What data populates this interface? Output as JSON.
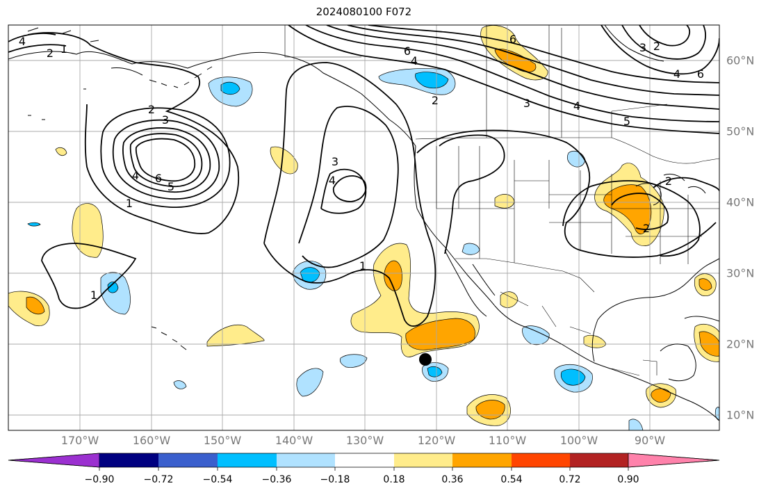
{
  "title": "2024080100 F072",
  "axes": {
    "longitude_labels": [
      "170°W",
      "160°W",
      "150°W",
      "140°W",
      "130°W",
      "120°W",
      "110°W",
      "100°W",
      "90°W"
    ],
    "latitude_labels": [
      "60°N",
      "50°N",
      "40°N",
      "30°N",
      "20°N",
      "10°N"
    ]
  },
  "colorbar": {
    "tick_labels": [
      "−0.90",
      "−0.72",
      "−0.54",
      "−0.36",
      "−0.18",
      "0.18",
      "0.36",
      "0.54",
      "0.72",
      "0.90"
    ],
    "colors": [
      "#9b30d0",
      "#000080",
      "#3a5fcd",
      "#00bfff",
      "#b0e2ff",
      "#ffffff",
      "#ffec8b",
      "#ffa500",
      "#ff4500",
      "#b22222",
      "#ff82ab"
    ],
    "extend": "both"
  },
  "contours": {
    "color": "#000000",
    "labels": [
      {
        "text": "4"
      },
      {
        "text": "2"
      },
      {
        "text": "1"
      },
      {
        "text": "2"
      },
      {
        "text": "3"
      },
      {
        "text": "4"
      },
      {
        "text": "6"
      },
      {
        "text": "5"
      },
      {
        "text": "1"
      },
      {
        "text": "3"
      },
      {
        "text": "4"
      },
      {
        "text": "1"
      },
      {
        "text": "1"
      },
      {
        "text": "6"
      },
      {
        "text": "4"
      },
      {
        "text": "2"
      },
      {
        "text": "3"
      },
      {
        "text": "4"
      },
      {
        "text": "5"
      },
      {
        "text": "6"
      },
      {
        "text": "3"
      },
      {
        "text": "2"
      },
      {
        "text": "4"
      },
      {
        "text": "6"
      },
      {
        "text": "2"
      },
      {
        "text": "2"
      }
    ]
  },
  "marker": {
    "name": "black-dot",
    "lon": -122,
    "lat": 18
  }
}
